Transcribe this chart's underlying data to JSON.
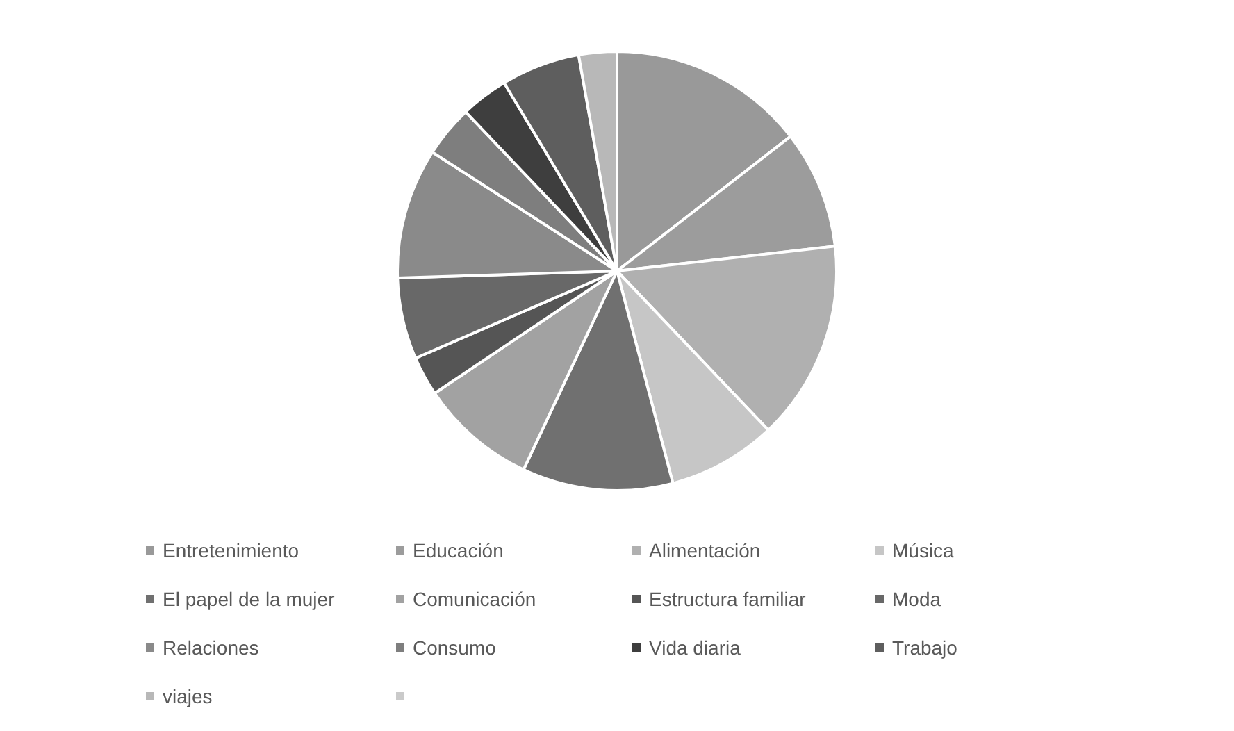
{
  "chart_data": {
    "type": "pie",
    "categories": [
      "Entretenimiento",
      "Educación",
      "Alimentación",
      "Música",
      "El papel de la mujer",
      "Comunicación",
      "Estructura familiar",
      "Moda",
      "Relaciones",
      "Consumo",
      "Vida diaria",
      "Trabajo",
      "viajes",
      null
    ],
    "values": [
      14.5,
      8.7,
      14.7,
      8.0,
      11.1,
      8.6,
      2.9,
      6.0,
      9.6,
      3.8,
      3.5,
      5.8,
      2.8,
      0
    ],
    "colors": [
      "#999999",
      "#9c9c9c",
      "#b0b0b0",
      "#c6c6c6",
      "#707070",
      "#a2a2a2",
      "#555555",
      "#686868",
      "#8a8a8a",
      "#7e7e7e",
      "#3e3e3e",
      "#5e5e5e",
      "#b8b8b8",
      "#cacaca"
    ],
    "legend": "bottom"
  }
}
